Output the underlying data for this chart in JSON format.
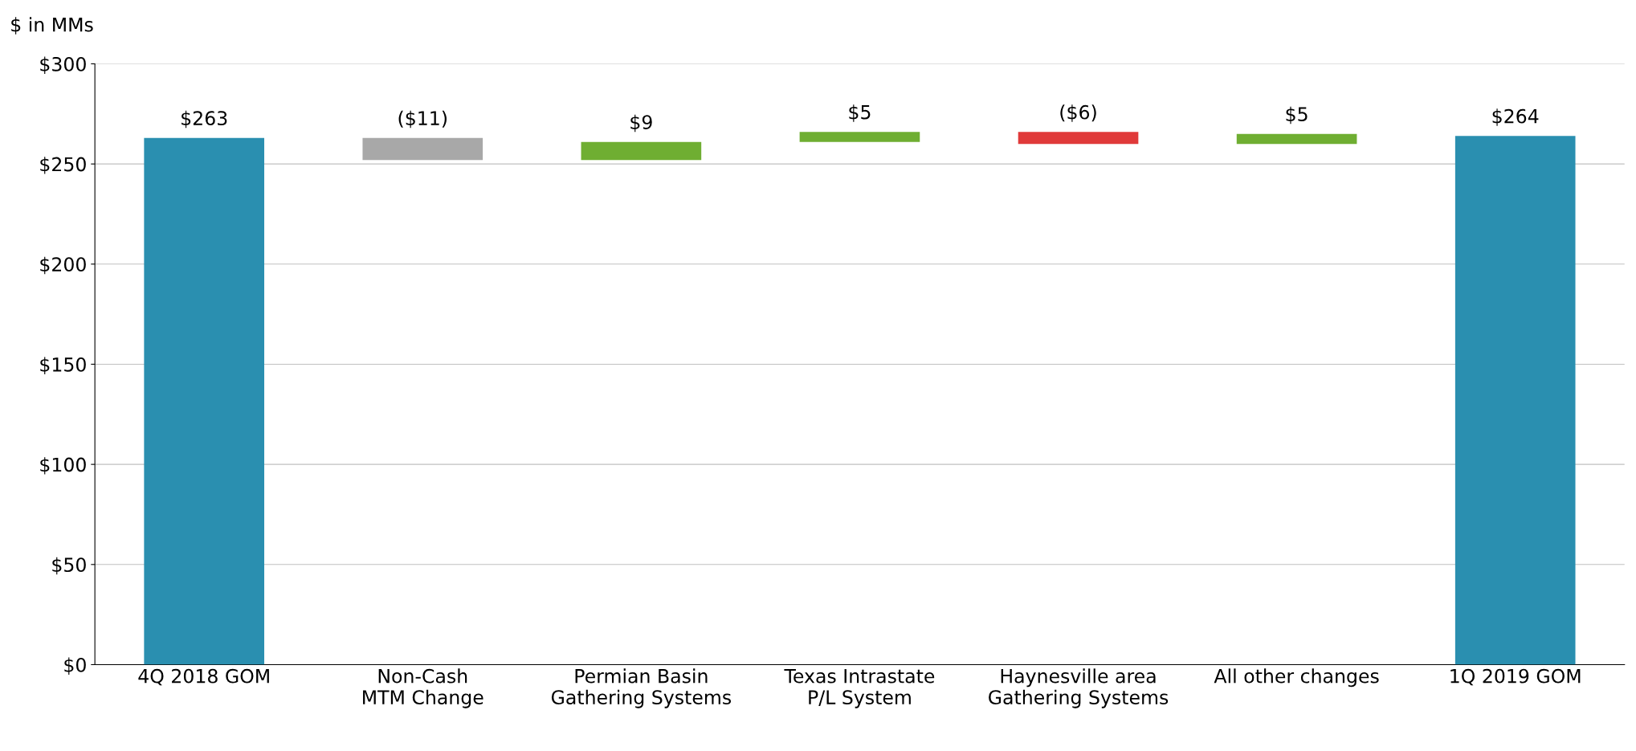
{
  "chart_data": {
    "type": "bar",
    "ylabel": "$ in MMs",
    "categories": [
      "4Q 2018 GOM",
      "Non-Cash\nMTM Change",
      "Permian Basin\nGathering Systems",
      "Texas Intrastate\nP/L System",
      "Haynesville area\nGathering Systems",
      "All other changes",
      "1Q 2019 GOM"
    ],
    "values": [
      263,
      -11,
      9,
      5,
      -6,
      5,
      264
    ],
    "base": [
      0,
      263,
      252,
      261,
      266,
      260,
      0
    ],
    "colors": [
      "#2a8fb0",
      "#a8a8a8",
      "#6fae32",
      "#6fae32",
      "#e03a3a",
      "#6fae32",
      "#2a8fb0"
    ],
    "value_labels": [
      "$263",
      "($11)",
      "$9",
      "$5",
      "($6)",
      "$5",
      "$264"
    ],
    "ylim": [
      0,
      300
    ],
    "yticks": [
      {
        "value": 0,
        "label": "$0"
      },
      {
        "value": 50,
        "label": "$50"
      },
      {
        "value": 100,
        "label": "$100"
      },
      {
        "value": 150,
        "label": "$150"
      },
      {
        "value": 200,
        "label": "$200"
      },
      {
        "value": 250,
        "label": "$250"
      },
      {
        "value": 300,
        "label": "$300"
      }
    ],
    "grid": "y",
    "legend": false
  }
}
